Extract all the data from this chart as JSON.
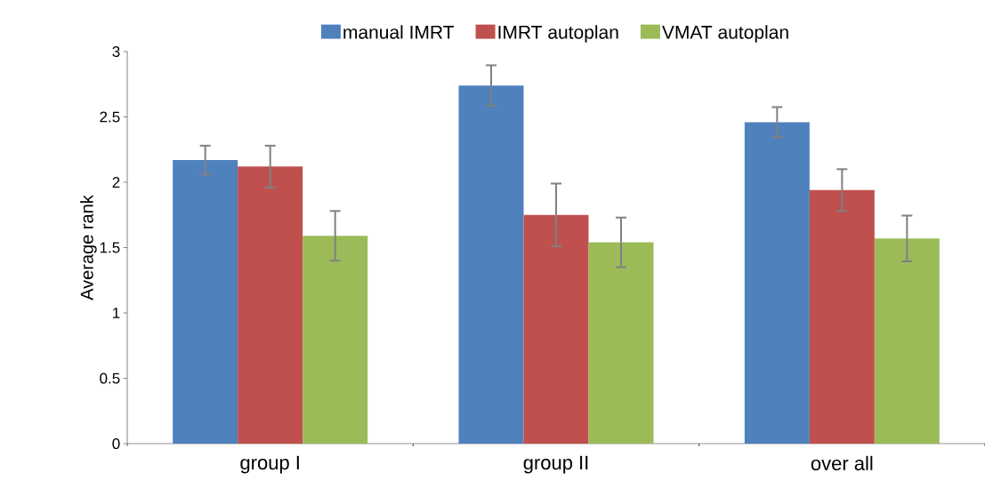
{
  "chart_data": {
    "type": "bar",
    "ylabel": "Average rank",
    "categories": [
      "group I",
      "group II",
      "over all"
    ],
    "series": [
      {
        "name": "manual IMRT",
        "color": "#4f81bd",
        "values": [
          2.17,
          2.74,
          2.46
        ],
        "errors": [
          0.11,
          0.155,
          0.115
        ]
      },
      {
        "name": "IMRT autoplan",
        "color": "#c0504d",
        "values": [
          2.12,
          1.75,
          1.94
        ],
        "errors": [
          0.16,
          0.24,
          0.16
        ]
      },
      {
        "name": "VMAT autoplan",
        "color": "#9bbb59",
        "values": [
          1.59,
          1.54,
          1.57
        ],
        "errors": [
          0.19,
          0.19,
          0.175
        ]
      }
    ],
    "ylim": [
      0,
      3
    ],
    "yticks": [
      0,
      0.5,
      1,
      1.5,
      2,
      2.5,
      3
    ],
    "grid": false,
    "legend": "top"
  }
}
